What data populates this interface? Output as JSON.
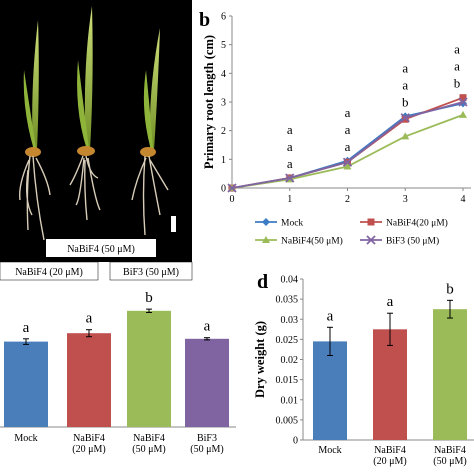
{
  "panel_b_letter": "b",
  "panel_d_letter": "d",
  "photo": {
    "labels": [
      "NaBiF4 (50 μM)",
      "NaBiF4 (20 μM)",
      "BiF3 (50 μM)"
    ]
  },
  "chart_data": [
    {
      "id": "root-length",
      "type": "line",
      "title": "",
      "xlabel": "",
      "ylabel": "Primary root length (cm)",
      "x": [
        0,
        1,
        2,
        3,
        4
      ],
      "xlim": [
        0,
        4
      ],
      "ylim": [
        0,
        6
      ],
      "yticks": [
        0,
        1,
        2,
        3,
        4,
        5,
        6
      ],
      "series": [
        {
          "name": "Mock",
          "values": [
            0,
            0.35,
            0.95,
            2.5,
            2.95
          ],
          "color": "#3c7cc4",
          "marker": "diamond"
        },
        {
          "name": "NaBiF4(20 μM)",
          "values": [
            0,
            0.35,
            0.9,
            2.4,
            3.15
          ],
          "color": "#c0504d",
          "marker": "square"
        },
        {
          "name": "NaBiF4(50 μM)",
          "values": [
            0,
            0.3,
            0.75,
            1.8,
            2.55
          ],
          "color": "#9bbb59",
          "marker": "triangle"
        },
        {
          "name": "BiF3 (50 μM)",
          "values": [
            0,
            0.35,
            0.9,
            2.45,
            3.0
          ],
          "color": "#8064a2",
          "marker": "x"
        }
      ],
      "letters": [
        {
          "x": 1,
          "labels": [
            "a",
            "a",
            "a"
          ]
        },
        {
          "x": 2,
          "labels": [
            "a",
            "a",
            "a"
          ]
        },
        {
          "x": 3,
          "labels": [
            "a",
            "a",
            "b"
          ]
        },
        {
          "x": 4,
          "labels": [
            "a",
            "a",
            "b"
          ]
        }
      ],
      "legend": "bottom"
    },
    {
      "id": "panel-c-bars",
      "type": "bar",
      "title": "",
      "categories": [
        "Mock",
        "NaBiF4\n(20 μM)",
        "NaBiF4\n(50 μM)",
        "BiF3\n(50 μM)"
      ],
      "values": [
        0.61,
        0.67,
        0.83,
        0.63
      ],
      "errors": [
        0.02,
        0.025,
        0.012,
        0.008
      ],
      "letters": [
        "a",
        "a",
        "b",
        "a"
      ],
      "colors": [
        "#4a7ebb",
        "#c0504d",
        "#9bbb59",
        "#8064a2"
      ],
      "ylim": [
        0,
        1
      ]
    },
    {
      "id": "dry-weight",
      "type": "bar",
      "title": "",
      "ylabel": "Dry weight (g)",
      "categories": [
        "Mock",
        "NaBiF4\n(20 μM)",
        "NaBiF4\n(50 μM)"
      ],
      "values": [
        0.0245,
        0.0275,
        0.0325
      ],
      "errors": [
        0.0035,
        0.004,
        0.0022
      ],
      "letters": [
        "a",
        "a",
        "b"
      ],
      "colors": [
        "#4a7ebb",
        "#c0504d",
        "#9bbb59"
      ],
      "ylim": [
        0,
        0.04
      ],
      "yticks": [
        0,
        0.005,
        0.01,
        0.015,
        0.02,
        0.025,
        0.03,
        0.035,
        0.04
      ],
      "ytick_labels": [
        "0",
        "0.005",
        "0.01",
        "0.015",
        "0.02",
        "0.025",
        "0.03",
        "0.035",
        "0.04"
      ]
    }
  ]
}
